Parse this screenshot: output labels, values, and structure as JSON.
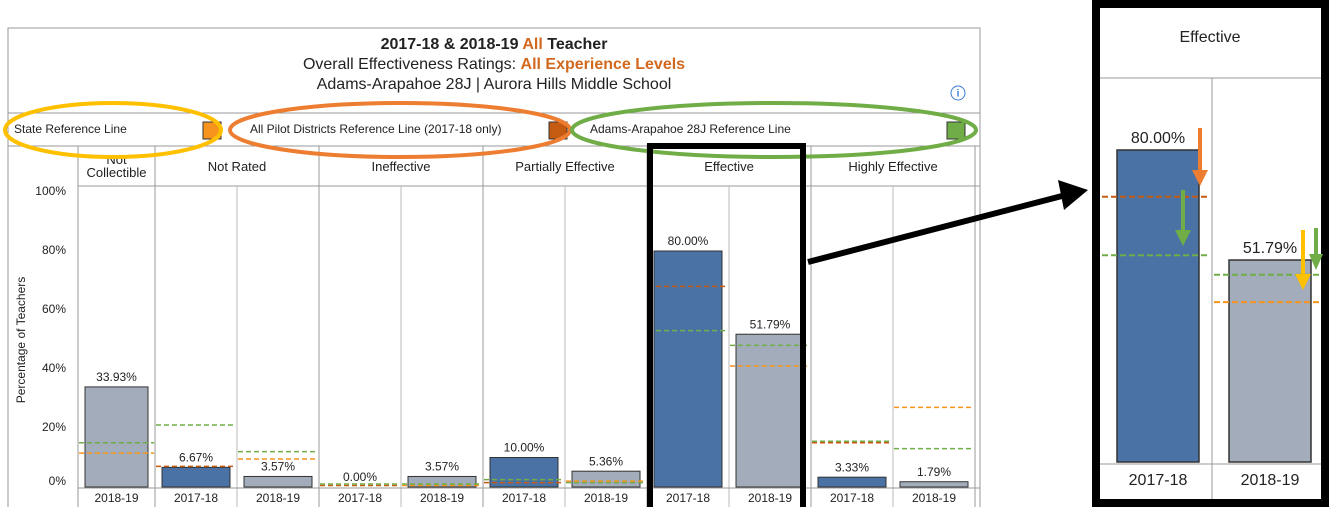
{
  "chart_data": {
    "type": "bar",
    "title": [
      "2017-18 & 2018-19",
      "All",
      "Teacher"
    ],
    "subtitle": [
      "Overall Effectiveness Ratings:",
      "All Experience Levels"
    ],
    "subtitle2": "Adams-Arapahoe 28J | Aurora Hills Middle School",
    "highlight_color": "#d2691e",
    "reference_lines": [
      {
        "name": "State Reference Line",
        "color": "#f7941d"
      },
      {
        "name": "All Pilot Districts Reference Line (2017-18 only)",
        "color": "#c55a11"
      },
      {
        "name": "Adams-Arapahoe 28J Reference Line",
        "color": "#70ad47"
      }
    ],
    "ylabel": "Percentage of Teachers",
    "ylim": [
      0,
      100
    ],
    "yticks": [
      {
        "value": 0,
        "label": "0%"
      },
      {
        "value": 20,
        "label": "20%"
      },
      {
        "value": 40,
        "label": "40%"
      },
      {
        "value": 60,
        "label": "60%"
      },
      {
        "value": 80,
        "label": "80%"
      },
      {
        "value": 100,
        "label": "100%"
      }
    ],
    "groups": [
      {
        "name": "Not Collectible",
        "x": [
          "2018-19"
        ],
        "values": [
          33.93
        ],
        "value_labels": [
          "33.93%"
        ],
        "colors": [
          "#a3acba"
        ],
        "refs": [
          [
            11.5,
            null,
            15
          ]
        ]
      },
      {
        "name": "Not Rated",
        "x": [
          "2017-18",
          "2018-19"
        ],
        "values": [
          6.67,
          3.57
        ],
        "value_labels": [
          "6.67%",
          "3.57%"
        ],
        "colors": [
          "#4a72a4",
          "#a3acba"
        ],
        "refs": [
          [
            null,
            7,
            21
          ],
          [
            9.5,
            null,
            12
          ]
        ]
      },
      {
        "name": "Ineffective",
        "x": [
          "2017-18",
          "2018-19"
        ],
        "values": [
          0.0,
          3.57
        ],
        "value_labels": [
          "0.00%",
          "3.57%"
        ],
        "colors": [
          "#4a72a4",
          "#a3acba"
        ],
        "refs": [
          [
            null,
            0.5,
            1
          ],
          [
            0.5,
            null,
            1
          ]
        ]
      },
      {
        "name": "Partially Effective",
        "x": [
          "2017-18",
          "2018-19"
        ],
        "values": [
          10.0,
          5.36
        ],
        "value_labels": [
          "10.00%",
          "5.36%"
        ],
        "colors": [
          "#4a72a4",
          "#a3acba"
        ],
        "refs": [
          [
            null,
            1.5,
            2.5
          ],
          [
            2,
            null,
            1.5
          ]
        ]
      },
      {
        "name": "Effective",
        "x": [
          "2017-18",
          "2018-19"
        ],
        "values": [
          80.0,
          51.79
        ],
        "value_labels": [
          "80.00%",
          "51.79%"
        ],
        "colors": [
          "#4a72a4",
          "#a3acba"
        ],
        "refs": [
          [
            null,
            68,
            53
          ],
          [
            41,
            null,
            48
          ]
        ]
      },
      {
        "name": "Highly Effective",
        "x": [
          "2017-18",
          "2018-19"
        ],
        "values": [
          3.33,
          1.79
        ],
        "value_labels": [
          "3.33%",
          "1.79%"
        ],
        "colors": [
          "#4a72a4",
          "#a3acba"
        ],
        "refs": [
          [
            null,
            15,
            15.5
          ],
          [
            27,
            null,
            13
          ]
        ]
      }
    ],
    "zoom_group": 4
  }
}
